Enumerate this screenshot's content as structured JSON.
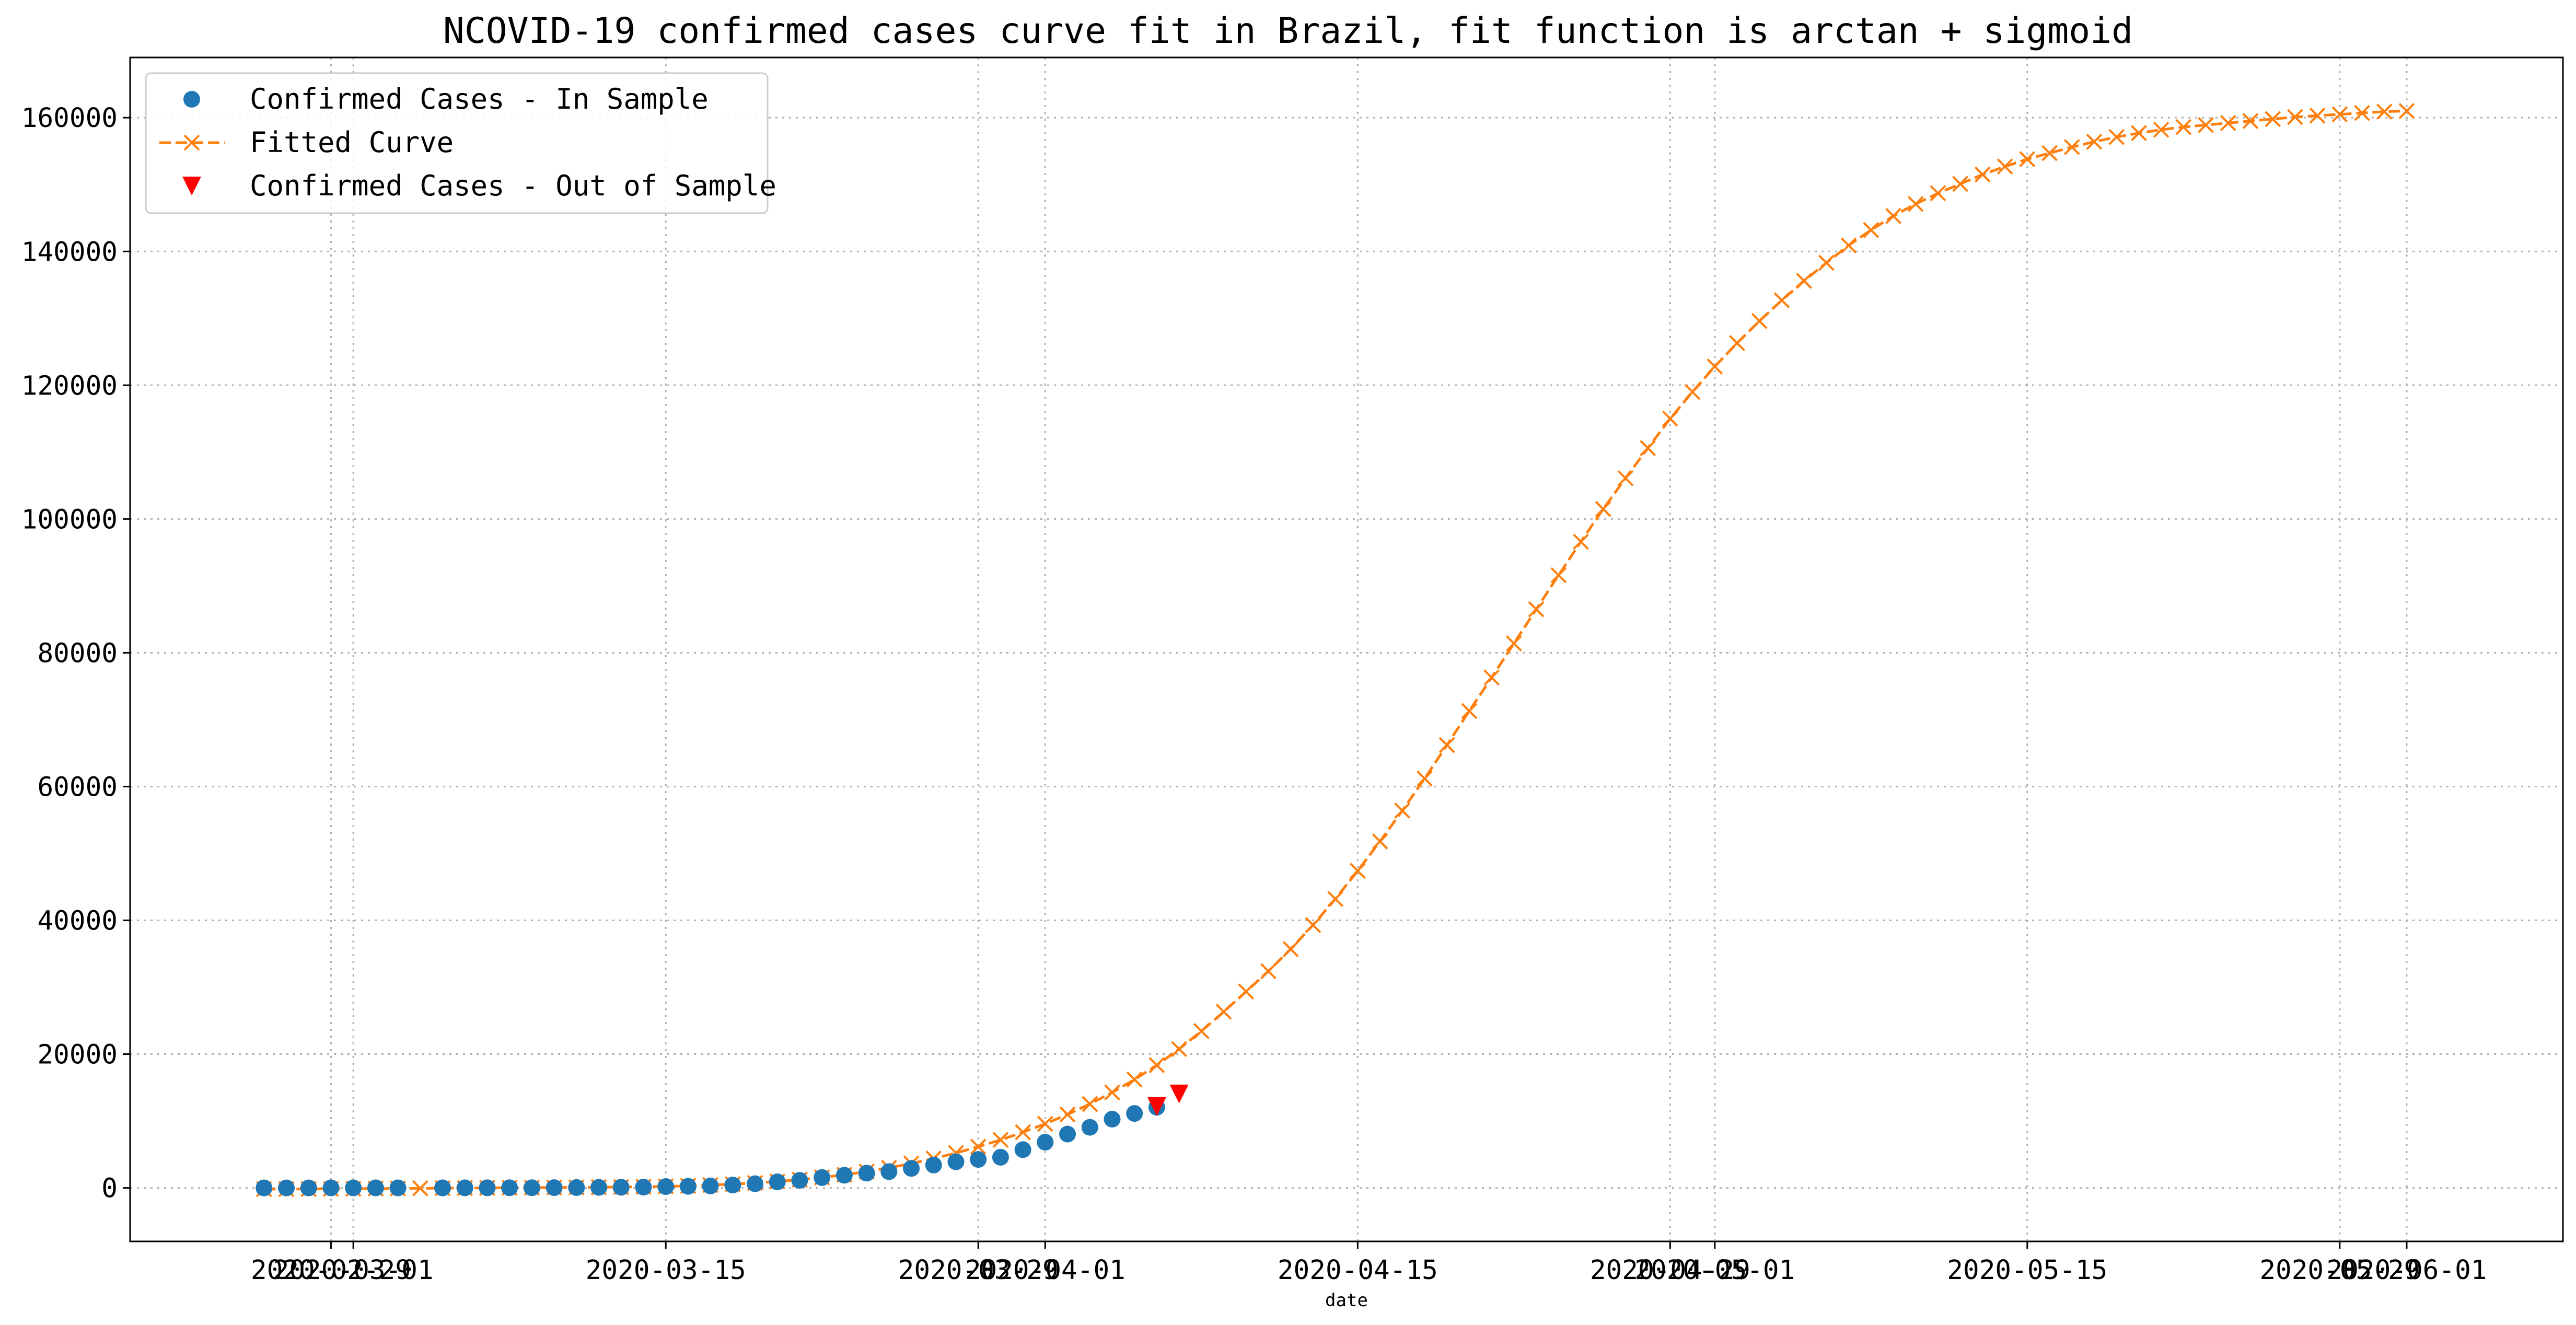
{
  "chart_data": {
    "type": "line",
    "title": "NCOVID-19 confirmed cases curve fit in Brazil, fit function is arctan + sigmoid",
    "xlabel": "date",
    "ylabel": "",
    "grid": true,
    "legend_position": "top-left",
    "x_ticks": [
      "2020-02-29",
      "2020-03-01",
      "2020-03-15",
      "2020-03-29",
      "2020-04-01",
      "2020-04-15",
      "2020-04-29",
      "2020-05-01",
      "2020-05-15",
      "2020-05-29",
      "2020-06-01"
    ],
    "x_range": [
      "2020-02-20",
      "2020-06-08"
    ],
    "y_ticks": [
      "0",
      "20000",
      "40000",
      "60000",
      "80000",
      "100000",
      "120000",
      "140000",
      "160000"
    ],
    "ylim": [
      -8000,
      169000
    ],
    "series": [
      {
        "name": "Confirmed Cases - In Sample",
        "style": "circle",
        "color": "#1f77b4",
        "x": [
          "2020-02-26",
          "2020-02-27",
          "2020-02-28",
          "2020-02-29",
          "2020-03-01",
          "2020-03-02",
          "2020-03-03",
          "2020-03-05",
          "2020-03-06",
          "2020-03-07",
          "2020-03-08",
          "2020-03-09",
          "2020-03-10",
          "2020-03-11",
          "2020-03-12",
          "2020-03-13",
          "2020-03-14",
          "2020-03-15",
          "2020-03-16",
          "2020-03-17",
          "2020-03-18",
          "2020-03-19",
          "2020-03-20",
          "2020-03-21",
          "2020-03-22",
          "2020-03-23",
          "2020-03-24",
          "2020-03-25",
          "2020-03-26",
          "2020-03-27",
          "2020-03-28",
          "2020-03-29",
          "2020-03-30",
          "2020-03-31",
          "2020-04-01",
          "2020-04-02",
          "2020-04-03",
          "2020-04-04",
          "2020-04-05",
          "2020-04-06"
        ],
        "values": [
          1,
          1,
          1,
          2,
          2,
          2,
          2,
          3,
          8,
          13,
          19,
          25,
          34,
          52,
          77,
          98,
          121,
          200,
          234,
          291,
          428,
          621,
          904,
          1128,
          1546,
          1891,
          2201,
          2433,
          2915,
          3417,
          3904,
          4256,
          4579,
          5717,
          6836,
          8044,
          9056,
          10278,
          11130,
          12056
        ]
      },
      {
        "name": "Fitted Curve",
        "style": "dashed-x",
        "color": "#ff7f0e",
        "x_start": "2020-02-26",
        "values": [
          -200,
          -180,
          -160,
          -140,
          -120,
          -100,
          -80,
          -60,
          -40,
          -20,
          0,
          20,
          40,
          60,
          80,
          100,
          130,
          170,
          230,
          310,
          420,
          560,
          740,
          960,
          1230,
          1560,
          1960,
          2440,
          3000,
          3650,
          4390,
          5220,
          6150,
          7180,
          8320,
          9580,
          10980,
          12540,
          14270,
          16200,
          18350,
          20760,
          23440,
          26340,
          29350,
          32400,
          35700,
          39300,
          43200,
          47400,
          51800,
          56400,
          61200,
          66200,
          71300,
          76300,
          81400,
          86500,
          91600,
          96600,
          101500,
          106100,
          110600,
          115000,
          119000,
          122800,
          126300,
          129600,
          132700,
          135600,
          138300,
          140900,
          143200,
          145300,
          147100,
          148700,
          150100,
          151500,
          152700,
          153800,
          154700,
          155600,
          156400,
          157100,
          157700,
          158200,
          158600,
          158900,
          159200,
          159500,
          159800,
          160100,
          160300,
          160500,
          160700,
          160900,
          161000
        ]
      },
      {
        "name": "Confirmed Cases - Out of Sample",
        "style": "triangle-down",
        "color": "#ff0000",
        "x": [
          "2020-04-06",
          "2020-04-07"
        ],
        "values": [
          12161,
          14034
        ]
      }
    ]
  }
}
